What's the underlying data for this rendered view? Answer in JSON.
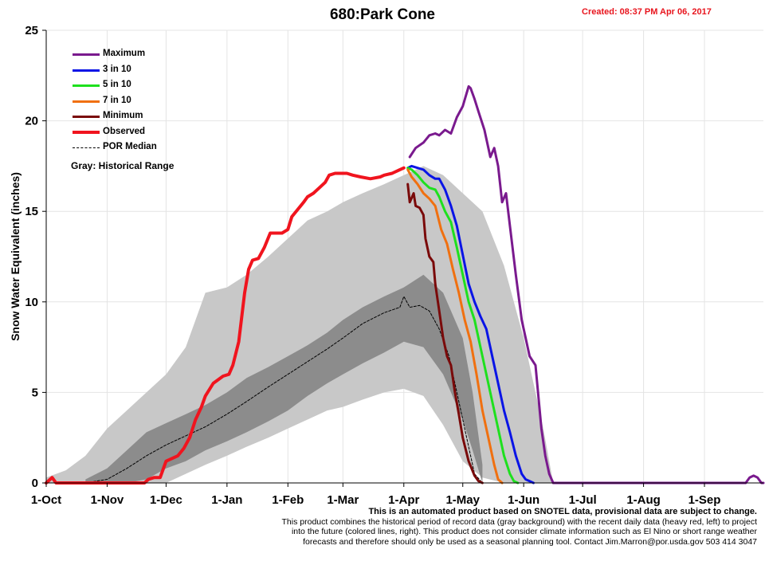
{
  "header": {
    "title": "680:Park Cone",
    "created": "Created: 08:37 PM Apr 06, 2017"
  },
  "legend": {
    "items": [
      {
        "label": "Maximum",
        "color": "#7a1a8e"
      },
      {
        "label": "3 in 10",
        "color": "#0a14e6"
      },
      {
        "label": "5 in 10",
        "color": "#1ee01e"
      },
      {
        "label": "7 in 10",
        "color": "#f07010"
      },
      {
        "label": "Minimum",
        "color": "#7a0a0a"
      },
      {
        "label": "Observed",
        "color": "#f0141e"
      },
      {
        "label": "POR Median",
        "color": "#000000",
        "dashed": true
      }
    ],
    "gray_note": "Gray: Historical Range"
  },
  "disclaimer": {
    "line1": "This is an automated product based on SNOTEL data, provisional data are subject to change.",
    "line2": "This product combines the historical period of record data (gray background) with the recent daily data (heavy red, left) to project",
    "line3": "into the future (colored lines, right). This product does not consider climate information such as El Nino or short range weather",
    "line4": "forecasts and therefore should only be used as a seasonal planning tool. Contact Jim.Marron@por.usda.gov 503 414 3047"
  },
  "chart_data": {
    "type": "area",
    "x_unit": "days since 1-Oct",
    "ylabel": "Snow Water Equivalent (inches)",
    "ylim": [
      0,
      25
    ],
    "yticks": [
      0,
      5,
      10,
      15,
      20,
      25
    ],
    "xlim": [
      0,
      365
    ],
    "xticks": [
      {
        "label": "1-Oct",
        "day": 0
      },
      {
        "label": "1-Nov",
        "day": 31
      },
      {
        "label": "1-Dec",
        "day": 61
      },
      {
        "label": "1-Jan",
        "day": 92
      },
      {
        "label": "1-Feb",
        "day": 123
      },
      {
        "label": "1-Mar",
        "day": 151
      },
      {
        "label": "1-Apr",
        "day": 182
      },
      {
        "label": "1-May",
        "day": 212
      },
      {
        "label": "1-Jun",
        "day": 243
      },
      {
        "label": "1-Jul",
        "day": 273
      },
      {
        "label": "1-Aug",
        "day": 304
      },
      {
        "label": "1-Sep",
        "day": 335
      }
    ],
    "grid": true,
    "legend_position": "top-left",
    "bands": [
      {
        "name": "historical-range",
        "color": "#c8c8c8",
        "x": [
          0,
          10,
          20,
          31,
          41,
          51,
          61,
          71,
          81,
          92,
          102,
          113,
          123,
          133,
          143,
          151,
          161,
          172,
          182,
          192,
          202,
          212,
          222,
          233,
          243,
          253,
          258
        ],
        "lower": [
          0,
          0,
          0,
          0,
          0,
          0,
          0,
          0.5,
          1,
          1.5,
          2,
          2.5,
          3,
          3.5,
          4,
          4.2,
          4.6,
          5,
          5.2,
          4.8,
          3.2,
          1.2,
          0.3,
          0,
          0,
          0,
          0
        ],
        "upper": [
          0.3,
          0.7,
          1.5,
          3,
          4,
          5,
          6,
          7.5,
          10.5,
          10.8,
          11.5,
          12.5,
          13.5,
          14.5,
          15,
          15.5,
          16,
          16.5,
          17,
          17.5,
          17,
          16,
          15,
          12,
          8,
          3,
          0
        ]
      },
      {
        "name": "interquartile-range",
        "color": "#8c8c8c",
        "x": [
          20,
          31,
          41,
          51,
          61,
          71,
          81,
          92,
          102,
          113,
          123,
          133,
          143,
          151,
          161,
          172,
          182,
          192,
          202,
          212,
          217,
          222
        ],
        "lower": [
          0,
          0,
          0,
          0.2,
          0.8,
          1.2,
          1.8,
          2.3,
          2.8,
          3.4,
          4,
          4.8,
          5.5,
          6,
          6.6,
          7.2,
          7.8,
          7.5,
          6,
          3.5,
          1.8,
          0
        ],
        "upper": [
          0.2,
          0.8,
          1.8,
          2.8,
          3.3,
          3.8,
          4.3,
          5,
          5.8,
          6.4,
          7,
          7.6,
          8.3,
          9,
          9.7,
          10.3,
          10.8,
          11.5,
          10.5,
          8,
          5,
          1
        ]
      }
    ],
    "series": [
      {
        "name": "POR Median",
        "color": "#000000",
        "dashed": true,
        "x": [
          20,
          31,
          41,
          51,
          61,
          71,
          81,
          92,
          102,
          113,
          123,
          133,
          143,
          151,
          161,
          172,
          180,
          182,
          185,
          190,
          195,
          200,
          205,
          210,
          215,
          218,
          222
        ],
        "y": [
          0,
          0.2,
          0.8,
          1.5,
          2.1,
          2.6,
          3.1,
          3.8,
          4.5,
          5.3,
          6,
          6.7,
          7.4,
          8,
          8.8,
          9.4,
          9.7,
          10.3,
          9.7,
          9.8,
          9.5,
          8.5,
          7,
          4.5,
          2,
          0.5,
          0
        ]
      },
      {
        "name": "Observed",
        "color": "#f0141e",
        "width": 4,
        "x": [
          0,
          2,
          3,
          5,
          10,
          20,
          30,
          40,
          50,
          52,
          55,
          58,
          61,
          65,
          67,
          70,
          73,
          76,
          79,
          81,
          85,
          90,
          93,
          95,
          98,
          101,
          103,
          105,
          108,
          111,
          114,
          117,
          120,
          123,
          125,
          128,
          131,
          133,
          136,
          139,
          142,
          144,
          147,
          150,
          153,
          156,
          160,
          165,
          170,
          172,
          176,
          180,
          182
        ],
        "y": [
          0,
          0.2,
          0.3,
          0,
          0,
          0,
          0,
          0,
          0,
          0.2,
          0.3,
          0.3,
          1.2,
          1.4,
          1.5,
          1.9,
          2.5,
          3.5,
          4.2,
          4.8,
          5.5,
          5.9,
          6.0,
          6.5,
          7.8,
          10.5,
          11.8,
          12.3,
          12.4,
          13.0,
          13.8,
          13.8,
          13.8,
          14.0,
          14.7,
          15.1,
          15.5,
          15.8,
          16.0,
          16.3,
          16.6,
          17.0,
          17.1,
          17.1,
          17.1,
          17.0,
          16.9,
          16.8,
          16.9,
          17.0,
          17.1,
          17.3,
          17.4
        ]
      },
      {
        "name": "Maximum",
        "color": "#7a1a8e",
        "width": 3,
        "x": [
          185,
          188,
          192,
          195,
          198,
          200,
          203,
          206,
          209,
          212,
          215,
          216,
          218,
          220,
          223,
          226,
          228,
          230,
          232,
          234,
          236,
          239,
          242,
          246,
          249,
          252,
          254,
          256,
          258
        ],
        "y": [
          18,
          18.5,
          18.8,
          19.2,
          19.3,
          19.2,
          19.5,
          19.3,
          20.2,
          20.8,
          21.9,
          21.8,
          21.2,
          20.5,
          19.5,
          18.0,
          18.5,
          17.5,
          15.5,
          16.0,
          14.2,
          11.5,
          9.0,
          7.0,
          6.5,
          3.0,
          1.5,
          0.5,
          0
        ]
      },
      {
        "name": "3 in 10",
        "color": "#0a14e6",
        "width": 3,
        "x": [
          184,
          186,
          189,
          192,
          195,
          198,
          200,
          203,
          206,
          209,
          212,
          215,
          218,
          221,
          224,
          227,
          230,
          233,
          236,
          239,
          242,
          244,
          246,
          248
        ],
        "y": [
          17.4,
          17.5,
          17.4,
          17.3,
          17.0,
          16.8,
          16.8,
          16.2,
          15.3,
          14.2,
          12.6,
          11.0,
          10.0,
          9.2,
          8.5,
          7.0,
          5.5,
          4.0,
          2.8,
          1.5,
          0.5,
          0.2,
          0.1,
          0
        ]
      },
      {
        "name": "5 in 10",
        "color": "#1ee01e",
        "width": 3,
        "x": [
          184,
          186,
          189,
          192,
          195,
          198,
          200,
          203,
          206,
          209,
          212,
          215,
          218,
          221,
          224,
          227,
          230,
          233,
          236,
          238,
          240
        ],
        "y": [
          17.4,
          17.3,
          17.0,
          16.6,
          16.3,
          16.2,
          15.8,
          15.0,
          14.4,
          13.0,
          11.5,
          10.0,
          9.0,
          7.5,
          6.0,
          4.5,
          3.0,
          1.5,
          0.5,
          0.1,
          0
        ]
      },
      {
        "name": "7 in 10",
        "color": "#f07010",
        "width": 3,
        "x": [
          184,
          186,
          189,
          192,
          195,
          198,
          201,
          204,
          207,
          210,
          213,
          216,
          219,
          222,
          225,
          228,
          230,
          232
        ],
        "y": [
          17.3,
          16.9,
          16.5,
          16.0,
          15.7,
          15.3,
          14.0,
          13.2,
          11.8,
          10.5,
          9.0,
          7.8,
          6.0,
          4.0,
          2.5,
          1.0,
          0.2,
          0
        ]
      },
      {
        "name": "Minimum",
        "color": "#7a0a0a",
        "width": 3,
        "x": [
          184,
          185,
          187,
          188,
          190,
          192,
          193,
          195,
          197,
          198,
          200,
          202,
          204,
          206,
          208,
          210,
          212,
          215,
          218,
          220,
          222
        ],
        "y": [
          16.5,
          15.5,
          16.0,
          15.3,
          15.2,
          14.8,
          13.5,
          12.5,
          12.2,
          11.0,
          9.5,
          8.0,
          7.0,
          6.5,
          5.0,
          3.8,
          2.5,
          1.2,
          0.4,
          0.1,
          0
        ]
      },
      {
        "name": "late-season-tail",
        "color": "#7a1a8e",
        "width": 3,
        "x": [
          356,
          358,
          360,
          362,
          364,
          365
        ],
        "y": [
          0,
          0.3,
          0.4,
          0.3,
          0,
          0
        ]
      }
    ]
  }
}
